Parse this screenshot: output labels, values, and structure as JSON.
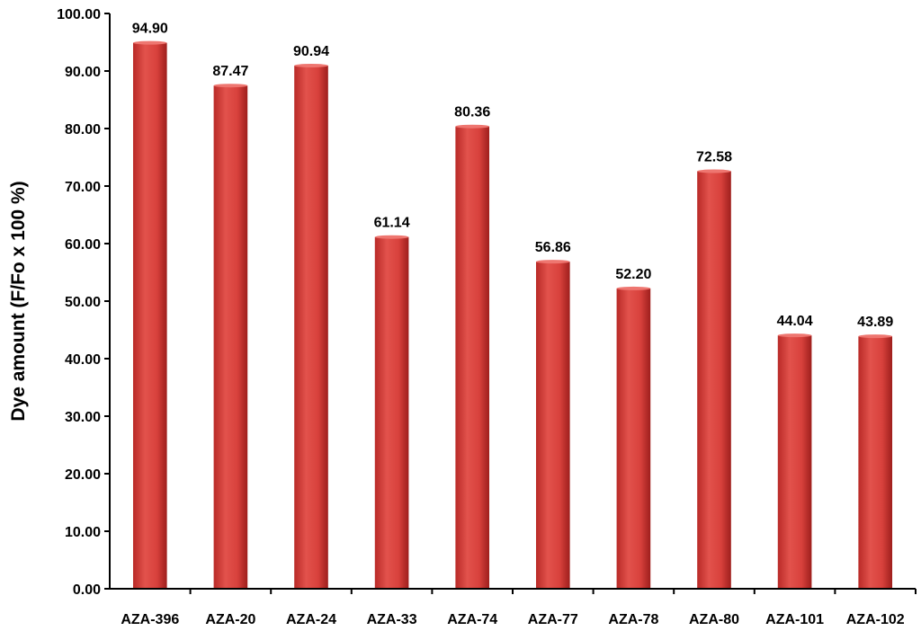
{
  "chart_data": {
    "type": "bar",
    "title": "",
    "xlabel": "",
    "ylabel": "Dye amount (F/Fo x 100 %)",
    "ylim": [
      0,
      100
    ],
    "y_ticks": [
      "0.00",
      "10.00",
      "20.00",
      "30.00",
      "40.00",
      "50.00",
      "60.00",
      "70.00",
      "80.00",
      "90.00",
      "100.00"
    ],
    "categories": [
      "AZA-396",
      "AZA-20",
      "AZA-24",
      "AZA-33",
      "AZA-74",
      "AZA-77",
      "AZA-78",
      "AZA-80",
      "AZA-101",
      "AZA-102"
    ],
    "values": [
      94.9,
      87.47,
      90.94,
      61.14,
      80.36,
      56.86,
      52.2,
      72.58,
      44.04,
      43.89
    ],
    "data_labels": [
      "94.90",
      "87.47",
      "90.94",
      "61.14",
      "80.36",
      "56.86",
      "52.20",
      "72.58",
      "44.04",
      "43.89"
    ],
    "bar_color": "#d8413c",
    "grid": false,
    "legend": "none"
  }
}
